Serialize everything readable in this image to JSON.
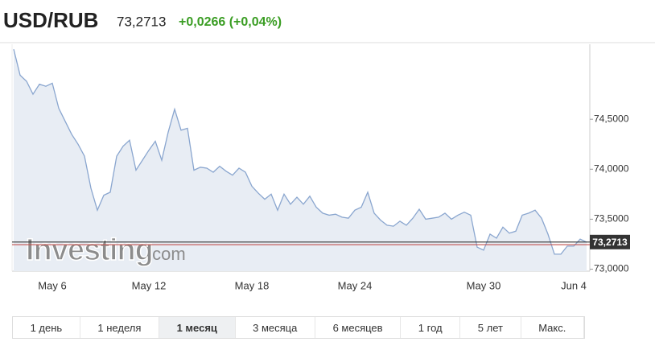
{
  "header": {
    "title": "USD/RUB",
    "change": "+0,0266 (+0,04%)"
  },
  "chart_data": {
    "type": "line",
    "categories": [
      null,
      null,
      null,
      null,
      null,
      null,
      "May 6",
      null,
      null,
      null,
      null,
      null,
      null,
      null,
      null,
      null,
      null,
      null,
      null,
      null,
      null,
      "May 12",
      null,
      null,
      null,
      null,
      null,
      null,
      null,
      null,
      null,
      null,
      null,
      null,
      null,
      null,
      null,
      "May 18",
      null,
      null,
      null,
      null,
      null,
      null,
      null,
      null,
      null,
      null,
      null,
      null,
      null,
      null,
      null,
      "May 24",
      null,
      null,
      null,
      null,
      null,
      null,
      null,
      null,
      null,
      null,
      null,
      null,
      null,
      null,
      null,
      null,
      null,
      null,
      null,
      "May 30",
      null,
      null,
      null,
      null,
      null,
      null,
      null,
      null,
      null,
      null,
      null,
      null,
      null,
      "Jun 4",
      null,
      null
    ],
    "series": [
      {
        "color": "#8aa6cf",
        "fill": "#e8edf4",
        "values": [
          75.2,
          74.94,
          74.88,
          74.75,
          74.85,
          74.83,
          74.86,
          74.61,
          74.48,
          74.35,
          74.25,
          74.13,
          73.81,
          73.59,
          73.74,
          73.77,
          74.13,
          74.23,
          74.29,
          73.99,
          74.09,
          74.19,
          74.28,
          74.09,
          74.37,
          74.6,
          74.39,
          74.41,
          73.99,
          74.02,
          74.01,
          73.97,
          74.03,
          73.98,
          73.94,
          74.01,
          73.97,
          73.83,
          73.76,
          73.7,
          73.75,
          73.59,
          73.75,
          73.65,
          73.72,
          73.65,
          73.73,
          73.62,
          73.56,
          73.54,
          73.55,
          73.52,
          73.51,
          73.59,
          73.62,
          73.77,
          73.56,
          73.49,
          73.44,
          73.43,
          73.48,
          73.44,
          73.51,
          73.6,
          73.5,
          73.51,
          73.52,
          73.56,
          73.5,
          73.54,
          73.57,
          73.54,
          73.22,
          73.19,
          73.35,
          73.31,
          73.42,
          73.36,
          73.38,
          73.54,
          73.56,
          73.59,
          73.51,
          73.35,
          73.15,
          73.15,
          73.23,
          73.23,
          73.3,
          73.27
        ]
      }
    ],
    "ylim": [
      72.98,
      75.25
    ],
    "yticks": [
      {
        "value": 73.0,
        "label": "73,0000"
      },
      {
        "value": 73.5,
        "label": "73,5000"
      },
      {
        "value": 74.0,
        "label": "74,0000"
      },
      {
        "value": 74.5,
        "label": "74,5000"
      }
    ],
    "last_line": {
      "value": 73.2713,
      "label": "73,2713",
      "color": "#333333"
    },
    "close_line": {
      "value": 73.245,
      "color": "#c0504d"
    },
    "grid": false,
    "watermark": [
      "Investing",
      ".com"
    ]
  },
  "ranges": {
    "items": [
      "1 день",
      "1 неделя",
      "1 месяц",
      "3 месяца",
      "6 месяцев",
      "1 год",
      "5 лет",
      "Макс."
    ],
    "selected": 2
  }
}
